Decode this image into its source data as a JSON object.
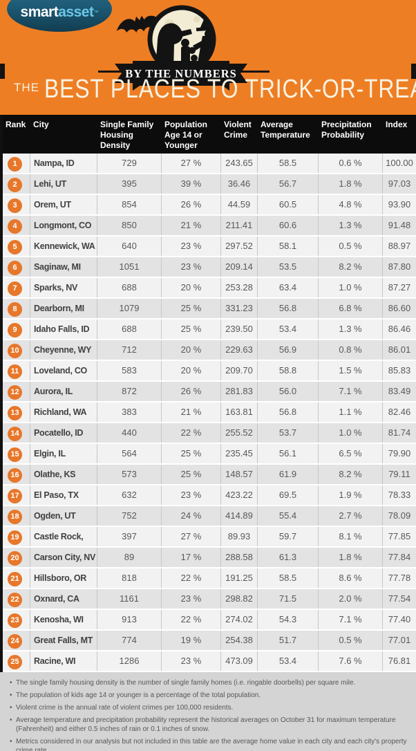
{
  "brand": {
    "smart": "smart",
    "asset": "asset",
    "tm": "™"
  },
  "ribbon_label": "BY THE NUMBERS",
  "title": {
    "the": "THE",
    "main": "BEST PLACES TO TRICK-OR-TREAT"
  },
  "colors": {
    "background_orange": "#ee7e23",
    "badge_orange": "#e7772a",
    "table_header_black": "#0c0c0c",
    "logo_blue": "#1d5a75",
    "logo_accent_blue": "#6cc7e6",
    "row_light": "#f2f2f2",
    "row_dark": "#e3e3e3",
    "footer_gray": "#d4d4d4",
    "moon_cream": "#f3ecd5",
    "title_cream": "#f8f2e3"
  },
  "chart_data": {
    "type": "table",
    "title": "The Best Places to Trick-or-Treat",
    "columns": [
      "Rank",
      "City",
      "Single Family Housing Density",
      "Population Age 14 or Younger",
      "Violent Crime",
      "Average Temperature",
      "Precipitation Probability",
      "Index"
    ],
    "rows": [
      [
        "1",
        "Nampa, ID",
        "729",
        "27 %",
        "243.65",
        "58.5",
        "0.6 %",
        "100.00"
      ],
      [
        "2",
        "Lehi, UT",
        "395",
        "39 %",
        "36.46",
        "56.7",
        "1.8 %",
        "97.03"
      ],
      [
        "3",
        "Orem, UT",
        "854",
        "26 %",
        "44.59",
        "60.5",
        "4.8 %",
        "93.90"
      ],
      [
        "4",
        "Longmont, CO",
        "850",
        "21 %",
        "211.41",
        "60.6",
        "1.3 %",
        "91.48"
      ],
      [
        "5",
        "Kennewick, WA",
        "640",
        "23 %",
        "297.52",
        "58.1",
        "0.5 %",
        "88.97"
      ],
      [
        "6",
        "Saginaw, MI",
        "1051",
        "23 %",
        "209.14",
        "53.5",
        "8.2 %",
        "87.80"
      ],
      [
        "7",
        "Sparks, NV",
        "688",
        "20 %",
        "253.28",
        "63.4",
        "1.0 %",
        "87.27"
      ],
      [
        "8",
        "Dearborn, MI",
        "1079",
        "25 %",
        "331.23",
        "56.8",
        "6.8 %",
        "86.60"
      ],
      [
        "9",
        "Idaho Falls, ID",
        "688",
        "25 %",
        "239.50",
        "53.4",
        "1.3 %",
        "86.46"
      ],
      [
        "10",
        "Cheyenne, WY",
        "712",
        "20 %",
        "229.63",
        "56.9",
        "0.8 %",
        "86.01"
      ],
      [
        "11",
        "Loveland, CO",
        "583",
        "20 %",
        "209.70",
        "58.8",
        "1.5 %",
        "85.83"
      ],
      [
        "12",
        "Aurora, IL",
        "872",
        "26 %",
        "281.83",
        "56.0",
        "7.1 %",
        "83.49"
      ],
      [
        "13",
        "Richland, WA",
        "383",
        "21 %",
        "163.81",
        "56.8",
        "1.1 %",
        "82.46"
      ],
      [
        "14",
        "Pocatello, ID",
        "440",
        "22 %",
        "255.52",
        "53.7",
        "1.0 %",
        "81.74"
      ],
      [
        "15",
        "Elgin, IL",
        "564",
        "25 %",
        "235.45",
        "56.1",
        "6.5 %",
        "79.90"
      ],
      [
        "16",
        "Olathe, KS",
        "573",
        "25 %",
        "148.57",
        "61.9",
        "8.2 %",
        "79.11"
      ],
      [
        "17",
        "El Paso, TX",
        "632",
        "23 %",
        "423.22",
        "69.5",
        "1.9 %",
        "78.33"
      ],
      [
        "18",
        "Ogden, UT",
        "752",
        "24 %",
        "414.89",
        "55.4",
        "2.7 %",
        "78.09"
      ],
      [
        "19",
        "Castle Rock, CO",
        "397",
        "27 %",
        "89.93",
        "59.7",
        "8.1 %",
        "77.85"
      ],
      [
        "20",
        "Carson City, NV",
        "89",
        "17 %",
        "288.58",
        "61.3",
        "1.8 %",
        "77.84"
      ],
      [
        "21",
        "Hillsboro, OR",
        "818",
        "22 %",
        "191.25",
        "58.5",
        "8.6 %",
        "77.78"
      ],
      [
        "22",
        "Oxnard, CA",
        "1161",
        "23 %",
        "298.82",
        "71.5",
        "2.0 %",
        "77.54"
      ],
      [
        "23",
        "Kenosha, WI",
        "913",
        "22 %",
        "274.02",
        "54.3",
        "7.1 %",
        "77.40"
      ],
      [
        "24",
        "Great Falls, MT",
        "774",
        "19 %",
        "254.38",
        "51.7",
        "0.5 %",
        "77.01"
      ],
      [
        "25",
        "Racine, WI",
        "1286",
        "23 %",
        "473.09",
        "53.4",
        "7.6 %",
        "76.81"
      ]
    ]
  },
  "footer": {
    "notes": [
      "The single family housing density is the number of single family homes (i.e. ringable doorbells) per square mile.",
      "The population of kids age 14 or younger is a percentage of the total population.",
      "Violent crime is the annual rate of violent crimes per 100,000 residents.",
      "Average temperature and precipitation probability represent the historical averages on October 31 for maximum temperature (Fahrenheit) and either 0.5 inches of rain or 0.1 inches of snow.",
      "Metrics considered in our analysis but not included in this table are the average home value in each city and each city's property crime rate."
    ]
  }
}
